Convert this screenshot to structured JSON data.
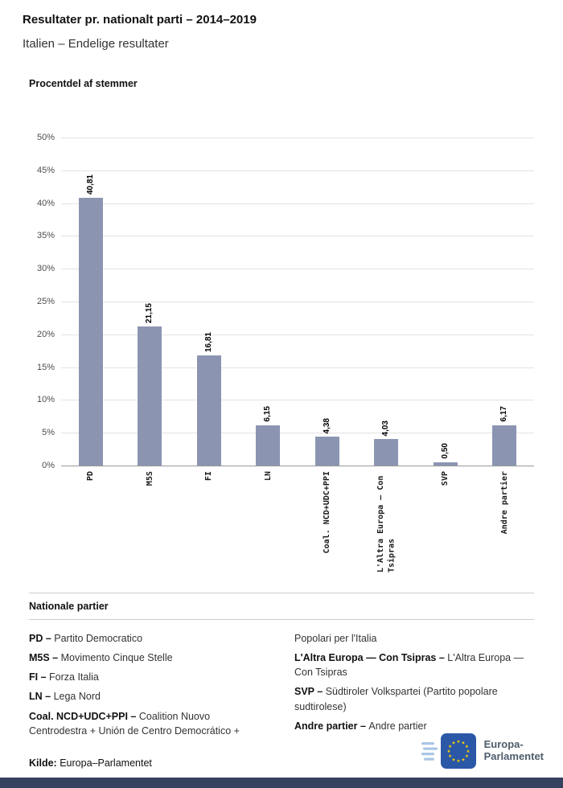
{
  "header": {
    "title": "Resultater pr. nationalt parti – 2014–2019",
    "subtitle": "Italien – Endelige resultater"
  },
  "chart": {
    "title": "Procentdel af stemmer"
  },
  "chart_data": {
    "type": "bar",
    "title": "Procentdel af stemmer",
    "categories": [
      "PD",
      "M5S",
      "FI",
      "LN",
      "Coal. NCD+UDC+PPI",
      "L'Altra Europa — Con Tsipras",
      "SVP",
      "Andre partier"
    ],
    "values": [
      40.81,
      21.15,
      16.81,
      6.15,
      4.38,
      4.03,
      0.5,
      6.17
    ],
    "value_labels": [
      "40,81",
      "21,15",
      "16,81",
      "6,15",
      "4,38",
      "4,03",
      "0,50",
      "6,17"
    ],
    "y_tick_labels": [
      "50%",
      "45%",
      "40%",
      "35%",
      "30%",
      "25%",
      "20%",
      "15%",
      "10%",
      "5%",
      "0%"
    ],
    "ylim": [
      0,
      50
    ],
    "grid": true,
    "legend_position": "none",
    "bar_color": "#8b95b1"
  },
  "legend": {
    "title": "Nationale partier",
    "columns": [
      [
        {
          "abbr": "PD –",
          "name": "Partito Democratico"
        },
        {
          "abbr": "M5S –",
          "name": "Movimento Cinque Stelle"
        },
        {
          "abbr": "FI –",
          "name": "Forza Italia"
        },
        {
          "abbr": "LN –",
          "name": "Lega Nord"
        },
        {
          "abbr": "Coal. NCD+UDC+PPI –",
          "name": "Coalition Nuovo Centrodestra + Unión de Centro Democrático +"
        }
      ],
      [
        {
          "abbr": "",
          "name": "Popolari per l'Italia"
        },
        {
          "abbr": "L'Altra Europa — Con Tsipras –",
          "name": "L'Altra Europa — Con Tsipras"
        },
        {
          "abbr": "SVP –",
          "name": "Südtiroler Volkspartei (Partito popolare sudtirolese)"
        },
        {
          "abbr": "Andre partier –",
          "name": "Andre partier"
        }
      ]
    ]
  },
  "footer": {
    "source_label": "Kilde:",
    "source": "Europa–Parlamentet",
    "logo_line1": "Europa-",
    "logo_line2": "Parlamentet"
  }
}
